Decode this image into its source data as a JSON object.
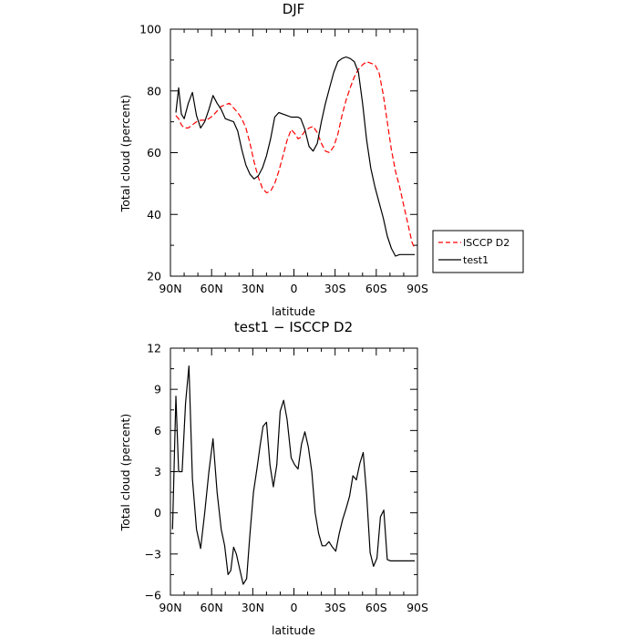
{
  "chart_data": [
    {
      "type": "line",
      "title": "DJF",
      "xlabel": "latitude",
      "ylabel": "Total cloud (percent)",
      "x_range": [
        90,
        -90
      ],
      "ylim": [
        20,
        100
      ],
      "x_tick_values": [
        90,
        60,
        30,
        0,
        -30,
        -60,
        -90
      ],
      "x_tick_labels": [
        "90N",
        "60N",
        "30N",
        "0",
        "30S",
        "60S",
        "90S"
      ],
      "y_tick_values": [
        20,
        40,
        60,
        80,
        100
      ],
      "y_tick_labels": [
        "20",
        "40",
        "60",
        "80",
        "100"
      ],
      "grid": false,
      "legend_position": "right",
      "x": [
        86,
        84,
        82,
        80,
        77,
        74,
        71,
        68,
        65,
        62,
        59,
        56,
        53,
        50,
        47,
        44,
        41,
        38,
        35,
        32,
        29,
        26,
        23,
        20,
        17,
        14,
        11,
        8,
        5,
        2,
        -1,
        -3,
        -5,
        -8,
        -11,
        -14,
        -17,
        -20,
        -23,
        -26,
        -29,
        -32,
        -35,
        -38,
        -41,
        -44,
        -47,
        -50,
        -53,
        -56,
        -59,
        -62,
        -65,
        -68,
        -71,
        -74,
        -77,
        -80,
        -83,
        -86,
        -88
      ],
      "series": [
        {
          "name": "ISCCP D2",
          "color": "#ff0000",
          "dash": "dashed",
          "values": [
            72,
            71,
            69,
            68,
            68,
            69,
            70,
            70.5,
            70.5,
            71,
            72,
            73.5,
            75,
            75.5,
            76,
            74.5,
            73,
            71,
            68,
            63,
            57,
            52,
            48.5,
            47,
            47.5,
            50,
            54,
            59,
            64,
            67.5,
            66,
            64.5,
            65,
            67,
            68,
            68.5,
            66.5,
            63,
            60.5,
            60,
            62,
            66,
            72,
            77,
            81,
            84.5,
            87,
            88.5,
            89.5,
            89,
            88.5,
            86,
            79,
            70,
            61,
            54,
            49,
            43,
            37,
            31,
            29
          ]
        },
        {
          "name": "test1",
          "color": "#000000",
          "dash": "solid",
          "values": [
            73,
            81,
            72.5,
            71,
            76,
            79.5,
            72,
            68,
            70,
            74,
            78.5,
            76,
            74,
            71,
            70.5,
            70,
            67,
            61,
            56,
            53,
            51.5,
            52.5,
            55,
            59,
            64.5,
            71.5,
            73,
            72.5,
            72,
            71.5,
            71.5,
            71.5,
            71,
            67.5,
            62,
            60.5,
            63,
            70,
            76,
            81,
            86,
            89.5,
            90.5,
            91,
            90.5,
            89.5,
            86,
            76,
            64,
            55,
            49,
            44,
            39,
            33,
            29,
            26.5,
            27,
            27,
            27,
            27,
            27
          ]
        }
      ]
    },
    {
      "type": "line",
      "title": "test1 − ISCCP D2",
      "xlabel": "latitude",
      "ylabel": "Total cloud (percent)",
      "x_range": [
        90,
        -90
      ],
      "ylim": [
        -6,
        12
      ],
      "x_tick_values": [
        90,
        60,
        30,
        0,
        -30,
        -60,
        -90
      ],
      "x_tick_labels": [
        "90N",
        "60N",
        "30N",
        "0",
        "30S",
        "60S",
        "90S"
      ],
      "y_tick_values": [
        -6,
        -3,
        0,
        3,
        6,
        9,
        12
      ],
      "y_tick_labels": [
        "−6",
        "−3",
        "0",
        "3",
        "6",
        "9",
        "12"
      ],
      "grid": false,
      "x": [
        88.5,
        86,
        84,
        81.5,
        79,
        76.5,
        74,
        71,
        68,
        65,
        62,
        59,
        56,
        53,
        50.5,
        48,
        46,
        44,
        42,
        39.5,
        37,
        34.5,
        32,
        29.5,
        27,
        24.5,
        22.5,
        20,
        17.5,
        15,
        12.5,
        10,
        7.5,
        5,
        2,
        -0.5,
        -3,
        -5.5,
        -8,
        -10.5,
        -13,
        -15.5,
        -18,
        -20.5,
        -23,
        -25.5,
        -28,
        -30.5,
        -33,
        -35.5,
        -38,
        -40.5,
        -43,
        -45.5,
        -48,
        -50.5,
        -53,
        -55.5,
        -58,
        -60.5,
        -63,
        -65.5,
        -68,
        -70.5,
        -73,
        -75.5,
        -78,
        -80.5,
        -83,
        -85.5,
        -88
      ],
      "series": [
        {
          "name": "",
          "color": "#000000",
          "dash": "solid",
          "values": [
            -1.2,
            8.5,
            3,
            3,
            8,
            10.7,
            2.5,
            -1.2,
            -2.6,
            0,
            3,
            5.4,
            1.5,
            -1.2,
            -2.4,
            -4.5,
            -4.2,
            -2.5,
            -3,
            -4.1,
            -5.2,
            -4.8,
            -1.5,
            1.5,
            3.2,
            5,
            6.3,
            6.6,
            3.5,
            1.9,
            3.5,
            7.4,
            8.2,
            6.8,
            4,
            3.5,
            3.2,
            5,
            5.9,
            4.8,
            3,
            0,
            -1.5,
            -2.4,
            -2.4,
            -2.1,
            -2.5,
            -2.8,
            -1.5,
            -0.5,
            0.3,
            1.2,
            2.7,
            2.4,
            3.6,
            4.4,
            1.3,
            -2.9,
            -3.9,
            -3.3,
            -0.3,
            0.2,
            -3.4,
            -3.5,
            -3.5,
            -3.5,
            -3.5,
            -3.5,
            -3.5,
            -3.5,
            -3.5
          ]
        }
      ]
    }
  ]
}
